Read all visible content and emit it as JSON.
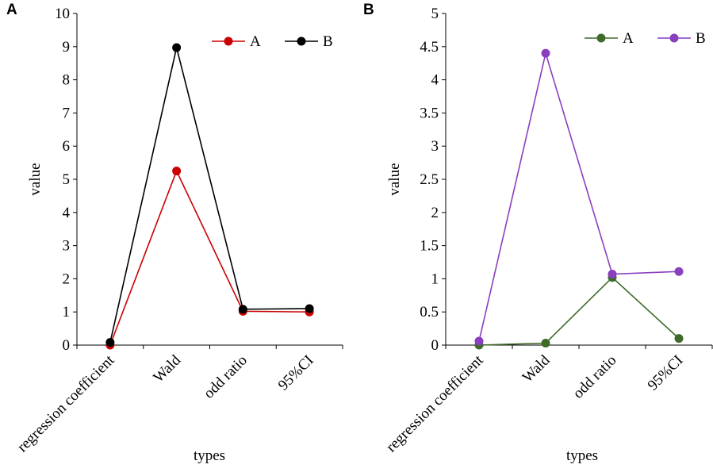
{
  "chart_data": [
    {
      "panel_label": "A",
      "type": "line",
      "categories": [
        "regression coefficient",
        "Wald",
        "odd ratio",
        "95%CI"
      ],
      "series": [
        {
          "name": "A",
          "color": "#cc0000",
          "values": [
            0.0,
            5.25,
            1.02,
            1.0
          ]
        },
        {
          "name": "B",
          "color": "#000000",
          "values": [
            0.08,
            8.97,
            1.08,
            1.1
          ]
        }
      ],
      "xlabel": "types",
      "ylabel": "value",
      "ylim": [
        0,
        10
      ],
      "yticks": [
        "0",
        "1",
        "2",
        "3",
        "4",
        "5",
        "6",
        "7",
        "8",
        "9",
        "10"
      ],
      "legend": "top-right"
    },
    {
      "panel_label": "B",
      "type": "line",
      "categories": [
        "regression coefficient",
        "Wald",
        "odd ratio",
        "95%CI"
      ],
      "series": [
        {
          "name": "A",
          "color": "#3f6b2a",
          "values": [
            0.0,
            0.03,
            1.02,
            0.1
          ]
        },
        {
          "name": "B",
          "color": "#8a3fbf",
          "values": [
            0.06,
            4.4,
            1.07,
            1.11
          ]
        }
      ],
      "xlabel": "types",
      "ylabel": "value",
      "ylim": [
        0,
        5
      ],
      "yticks": [
        "0",
        "0.5",
        "1",
        "1.5",
        "2",
        "2.5",
        "3",
        "3.5",
        "4",
        "4.5",
        "5"
      ],
      "legend": "top-right"
    }
  ]
}
